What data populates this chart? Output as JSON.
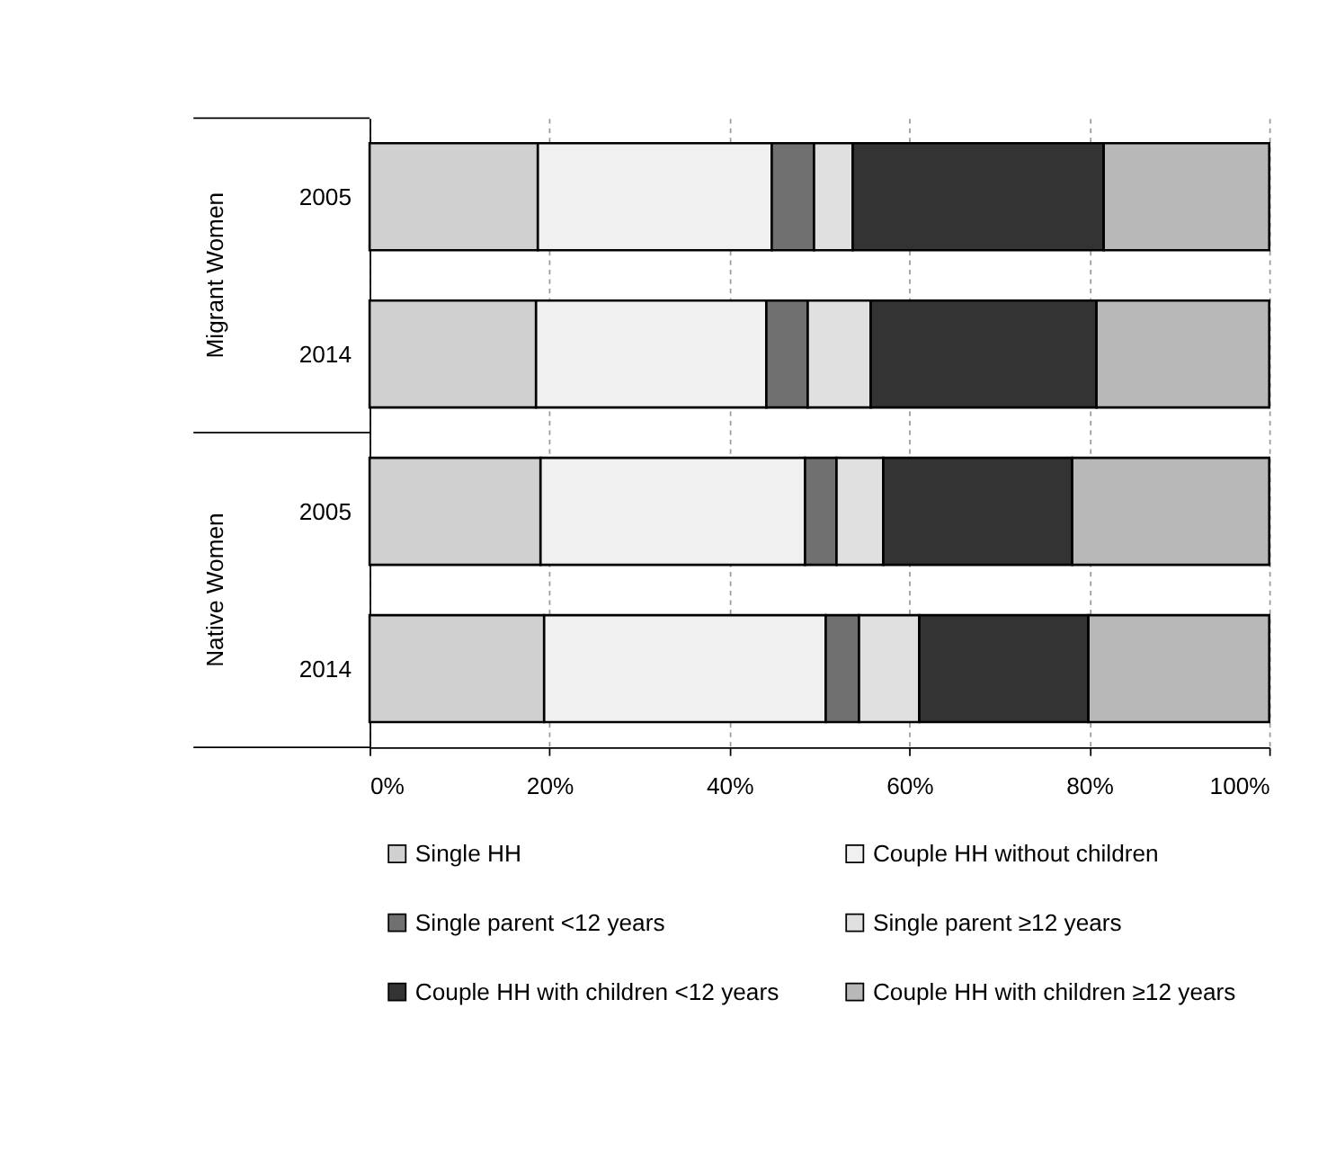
{
  "chart_data": {
    "type": "bar",
    "orientation": "horizontal",
    "stacked": true,
    "categories": [
      "2005",
      "2014",
      "2005",
      "2014"
    ],
    "annotations": [
      "Migrant Women",
      "Native Women"
    ],
    "series": [
      {
        "name": "Single HH",
        "color": "#d0d0d0",
        "values": [
          18.7,
          18.5,
          19.0,
          19.4
        ]
      },
      {
        "name": "Couple HH without  children",
        "color": "#f0f0f0",
        "values": [
          26.0,
          25.6,
          29.4,
          31.3
        ]
      },
      {
        "name": "Single parent <12 years",
        "color": "#707070",
        "values": [
          4.7,
          4.6,
          3.5,
          3.7
        ]
      },
      {
        "name": "Single parent ≥12 years",
        "color": "#e0e0e0",
        "values": [
          4.3,
          7.0,
          5.2,
          6.7
        ]
      },
      {
        "name": "Couple HH with children <12 years",
        "color": "#333333",
        "values": [
          27.9,
          25.1,
          21.0,
          18.8
        ]
      },
      {
        "name": "Couple HH with children ≥12 years",
        "color": "#b8b8b8",
        "values": [
          18.4,
          19.2,
          21.9,
          20.1
        ]
      }
    ],
    "xlim": [
      0,
      100
    ],
    "xticks": [
      {
        "value": 0,
        "label": "0%"
      },
      {
        "value": 20,
        "label": "20%"
      },
      {
        "value": 40,
        "label": "40%"
      },
      {
        "value": 60,
        "label": "60%"
      },
      {
        "value": 80,
        "label": "80%"
      },
      {
        "value": 100,
        "label": "100%"
      }
    ],
    "grid": "x",
    "legend": "bottom"
  }
}
